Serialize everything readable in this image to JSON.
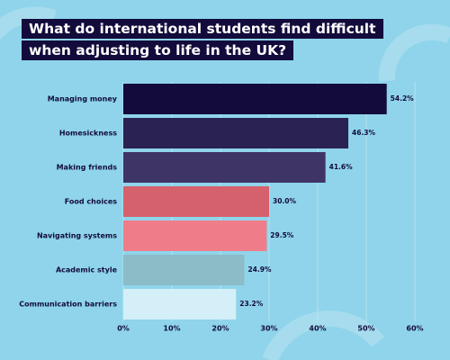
{
  "chart_data": {
    "type": "bar",
    "orientation": "horizontal",
    "title": "What do international students find difficult when adjusting to life in the UK?",
    "categories": [
      "Managing money",
      "Homesickness",
      "Making friends",
      "Food choices",
      "Navigating systems",
      "Academic style",
      "Communication barriers"
    ],
    "values": [
      54.2,
      46.3,
      41.6,
      30.0,
      29.5,
      24.9,
      23.2
    ],
    "value_labels": [
      "54.2%",
      "46.3%",
      "41.6%",
      "30.0%",
      "29.5%",
      "24.9%",
      "23.2%"
    ],
    "colors": [
      "#120b3b",
      "#2a2351",
      "#3e3565",
      "#d5616d",
      "#ef7d89",
      "#8bbcc8",
      "#d4eff7"
    ],
    "xlim": [
      0,
      60
    ],
    "xticks": [
      {
        "value": 0,
        "label": "0%"
      },
      {
        "value": 10,
        "label": "10%"
      },
      {
        "value": 20,
        "label": "20%"
      },
      {
        "value": 30,
        "label": "30%"
      },
      {
        "value": 40,
        "label": "40%"
      },
      {
        "value": 50,
        "label": "50%"
      },
      {
        "value": 60,
        "label": "60%"
      }
    ],
    "grid": true
  }
}
